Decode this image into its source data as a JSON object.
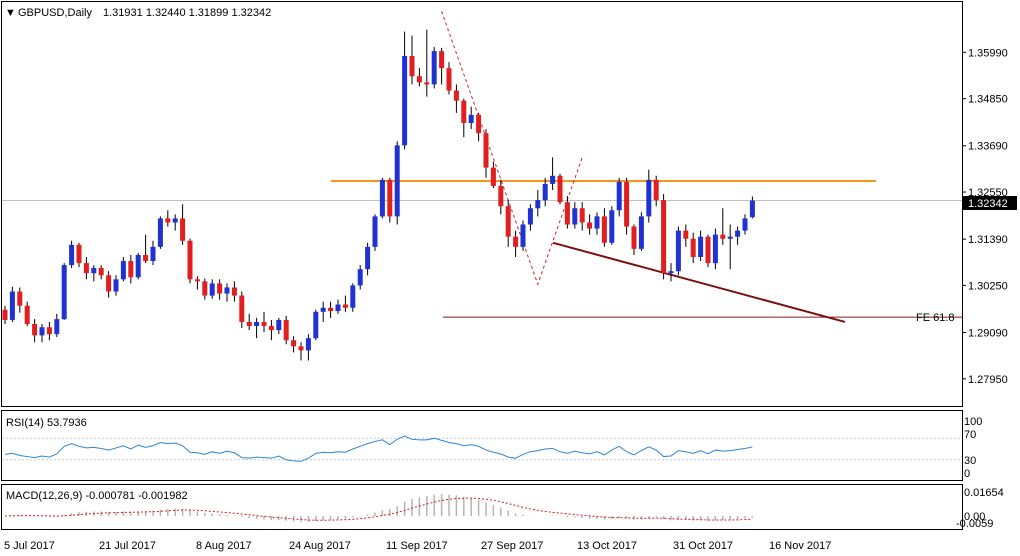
{
  "header": {
    "symbol": "GBPUSD,Daily",
    "ohlc": "1.31931 1.32440 1.31899 1.32342"
  },
  "price_axis": {
    "ticks": [
      "1.35990",
      "1.34850",
      "1.33690",
      "1.32550",
      "1.31390",
      "1.30250",
      "1.29090",
      "1.27950"
    ],
    "current": "1.32342"
  },
  "date_axis": {
    "labels": [
      "5 Jul 2017",
      "21 Jul 2017",
      "8 Aug 2017",
      "24 Aug 2017",
      "11 Sep 2017",
      "27 Sep 2017",
      "13 Oct 2017",
      "31 Oct 2017",
      "16 Nov 2017"
    ]
  },
  "annotations": {
    "fe_label": "FE 61.8"
  },
  "rsi": {
    "title": "RSI(14) 53.7936",
    "levels": [
      "100",
      "70",
      "30",
      "0"
    ]
  },
  "macd": {
    "title": "MACD(12,26,9) -0.000781 -0.001982",
    "ticks": [
      "0.01654",
      "0.00",
      "-0.0059"
    ]
  },
  "colors": {
    "bull": "#1f32d2",
    "bear": "#e21e1e",
    "resistance": "#f7941d",
    "trendline": "#7b1010",
    "fe_line": "#8b1a1a",
    "rsi_line": "#2e86d4",
    "macd_hist": "#b4b4b4",
    "macd_signal": "#d21e1e"
  },
  "chart_data": {
    "type": "candlestick",
    "price_range": [
      1.2733,
      1.3718
    ],
    "resistance_level": 1.3282,
    "fe_level": 1.2947,
    "candles": [
      [
        1.2965,
        1.2975,
        1.293,
        1.294
      ],
      [
        1.294,
        1.3022,
        1.2935,
        1.301
      ],
      [
        1.301,
        1.302,
        1.2958,
        1.2975
      ],
      [
        1.2975,
        1.2985,
        1.2925,
        1.293
      ],
      [
        1.293,
        1.2942,
        1.2885,
        1.2902
      ],
      [
        1.2902,
        1.293,
        1.2885,
        1.2922
      ],
      [
        1.2922,
        1.2935,
        1.289,
        1.2905
      ],
      [
        1.2905,
        1.2955,
        1.2898,
        1.2942
      ],
      [
        1.2942,
        1.308,
        1.294,
        1.3075
      ],
      [
        1.3075,
        1.3135,
        1.3068,
        1.3125
      ],
      [
        1.3125,
        1.313,
        1.307,
        1.308
      ],
      [
        1.308,
        1.3095,
        1.304,
        1.3055
      ],
      [
        1.3055,
        1.3075,
        1.3035,
        1.3068
      ],
      [
        1.3068,
        1.3075,
        1.304,
        1.305
      ],
      [
        1.305,
        1.306,
        1.2995,
        1.301
      ],
      [
        1.301,
        1.305,
        1.3,
        1.304
      ],
      [
        1.304,
        1.3095,
        1.3035,
        1.3085
      ],
      [
        1.3085,
        1.31,
        1.303,
        1.3045
      ],
      [
        1.3045,
        1.3105,
        1.304,
        1.31
      ],
      [
        1.31,
        1.315,
        1.308,
        1.3085
      ],
      [
        1.3085,
        1.3135,
        1.3075,
        1.312
      ],
      [
        1.312,
        1.3195,
        1.3115,
        1.319
      ],
      [
        1.319,
        1.321,
        1.317,
        1.318
      ],
      [
        1.318,
        1.32,
        1.316,
        1.319
      ],
      [
        1.319,
        1.3225,
        1.3125,
        1.3135
      ],
      [
        1.3135,
        1.314,
        1.303,
        1.304
      ],
      [
        1.304,
        1.3048,
        1.3015,
        1.3035
      ],
      [
        1.3035,
        1.3042,
        1.299,
        1.3
      ],
      [
        1.3,
        1.304,
        1.2992,
        1.303
      ],
      [
        1.303,
        1.304,
        1.299,
        1.3005
      ],
      [
        1.3005,
        1.303,
        1.2985,
        1.302
      ],
      [
        1.302,
        1.3035,
        1.2985,
        1.3
      ],
      [
        1.3,
        1.301,
        1.292,
        1.2935
      ],
      [
        1.2935,
        1.2955,
        1.2915,
        1.2925
      ],
      [
        1.2925,
        1.2945,
        1.2895,
        1.2935
      ],
      [
        1.2935,
        1.296,
        1.291,
        1.2925
      ],
      [
        1.2925,
        1.294,
        1.289,
        1.2915
      ],
      [
        1.2915,
        1.2945,
        1.2905,
        1.294
      ],
      [
        1.294,
        1.295,
        1.288,
        1.289
      ],
      [
        1.289,
        1.29,
        1.286,
        1.2875
      ],
      [
        1.2875,
        1.2885,
        1.284,
        1.2865
      ],
      [
        1.2865,
        1.2905,
        1.284,
        1.2895
      ],
      [
        1.2895,
        1.2965,
        1.289,
        1.296
      ],
      [
        1.296,
        1.2985,
        1.2935,
        1.297
      ],
      [
        1.297,
        1.2985,
        1.2945,
        1.2962
      ],
      [
        1.2962,
        1.299,
        1.2955,
        1.2978
      ],
      [
        1.2978,
        1.3,
        1.296,
        1.297
      ],
      [
        1.297,
        1.303,
        1.296,
        1.3025
      ],
      [
        1.3025,
        1.3075,
        1.3015,
        1.3065
      ],
      [
        1.3065,
        1.313,
        1.305,
        1.312
      ],
      [
        1.312,
        1.32,
        1.311,
        1.3195
      ],
      [
        1.3195,
        1.329,
        1.319,
        1.3285
      ],
      [
        1.3285,
        1.329,
        1.318,
        1.3195
      ],
      [
        1.3195,
        1.338,
        1.3175,
        1.337
      ],
      [
        1.337,
        1.365,
        1.336,
        1.359
      ],
      [
        1.359,
        1.364,
        1.352,
        1.354
      ],
      [
        1.354,
        1.356,
        1.3515,
        1.3525
      ],
      [
        1.3525,
        1.3655,
        1.349,
        1.352
      ],
      [
        1.352,
        1.3612,
        1.351,
        1.3602
      ],
      [
        1.3602,
        1.361,
        1.352,
        1.356
      ],
      [
        1.356,
        1.3575,
        1.3495,
        1.3505
      ],
      [
        1.3505,
        1.352,
        1.345,
        1.348
      ],
      [
        1.348,
        1.3485,
        1.339,
        1.3425
      ],
      [
        1.3425,
        1.3465,
        1.341,
        1.3445
      ],
      [
        1.3445,
        1.345,
        1.338,
        1.34
      ],
      [
        1.34,
        1.341,
        1.329,
        1.3315
      ],
      [
        1.3315,
        1.333,
        1.3265,
        1.327
      ],
      [
        1.327,
        1.3285,
        1.32,
        1.322
      ],
      [
        1.322,
        1.3235,
        1.312,
        1.3145
      ],
      [
        1.3145,
        1.316,
        1.3095,
        1.312
      ],
      [
        1.312,
        1.3185,
        1.311,
        1.3175
      ],
      [
        1.3175,
        1.3225,
        1.316,
        1.3215
      ],
      [
        1.3215,
        1.326,
        1.3195,
        1.3235
      ],
      [
        1.3235,
        1.329,
        1.322,
        1.3275
      ],
      [
        1.3275,
        1.334,
        1.326,
        1.3295
      ],
      [
        1.3295,
        1.33,
        1.3225,
        1.323
      ],
      [
        1.323,
        1.3245,
        1.3165,
        1.3175
      ],
      [
        1.3175,
        1.323,
        1.3165,
        1.3215
      ],
      [
        1.3215,
        1.323,
        1.316,
        1.318
      ],
      [
        1.318,
        1.32,
        1.315,
        1.3165
      ],
      [
        1.3165,
        1.3205,
        1.315,
        1.3195
      ],
      [
        1.3195,
        1.3215,
        1.312,
        1.313
      ],
      [
        1.313,
        1.322,
        1.3125,
        1.321
      ],
      [
        1.321,
        1.329,
        1.3195,
        1.328
      ],
      [
        1.328,
        1.329,
        1.315,
        1.317
      ],
      [
        1.317,
        1.3175,
        1.31,
        1.3115
      ],
      [
        1.3115,
        1.3205,
        1.311,
        1.3195
      ],
      [
        1.3195,
        1.331,
        1.318,
        1.3285
      ],
      [
        1.3285,
        1.3295,
        1.322,
        1.3235
      ],
      [
        1.3235,
        1.325,
        1.304,
        1.3055
      ],
      [
        1.3055,
        1.308,
        1.3035,
        1.306
      ],
      [
        1.306,
        1.317,
        1.305,
        1.316
      ],
      [
        1.316,
        1.3175,
        1.312,
        1.314
      ],
      [
        1.314,
        1.3155,
        1.308,
        1.3095
      ],
      [
        1.3095,
        1.316,
        1.3085,
        1.3145
      ],
      [
        1.3145,
        1.315,
        1.307,
        1.308
      ],
      [
        1.308,
        1.3165,
        1.3065,
        1.315
      ],
      [
        1.315,
        1.3215,
        1.3125,
        1.314
      ],
      [
        1.314,
        1.3175,
        1.3065,
        1.3145
      ],
      [
        1.3145,
        1.317,
        1.3125,
        1.316
      ],
      [
        1.316,
        1.32,
        1.315,
        1.319
      ],
      [
        1.3193,
        1.3244,
        1.319,
        1.3234
      ]
    ],
    "rsi_values": [
      40,
      42,
      38,
      36,
      34,
      37,
      35,
      41,
      55,
      60,
      55,
      52,
      53,
      51,
      48,
      52,
      56,
      50,
      57,
      53,
      56,
      62,
      60,
      61,
      56,
      44,
      43,
      40,
      45,
      42,
      46,
      43,
      34,
      33,
      35,
      34,
      33,
      37,
      30,
      28,
      27,
      33,
      42,
      44,
      43,
      45,
      44,
      50,
      55,
      60,
      64,
      67,
      58,
      68,
      74,
      68,
      67,
      67,
      70,
      66,
      62,
      60,
      56,
      58,
      55,
      48,
      44,
      41,
      35,
      33,
      40,
      45,
      47,
      50,
      51,
      45,
      42,
      46,
      43,
      41,
      45,
      39,
      48,
      55,
      45,
      39,
      47,
      54,
      48,
      36,
      37,
      47,
      45,
      42,
      47,
      41,
      48,
      46,
      47,
      49,
      51,
      54
    ]
  }
}
